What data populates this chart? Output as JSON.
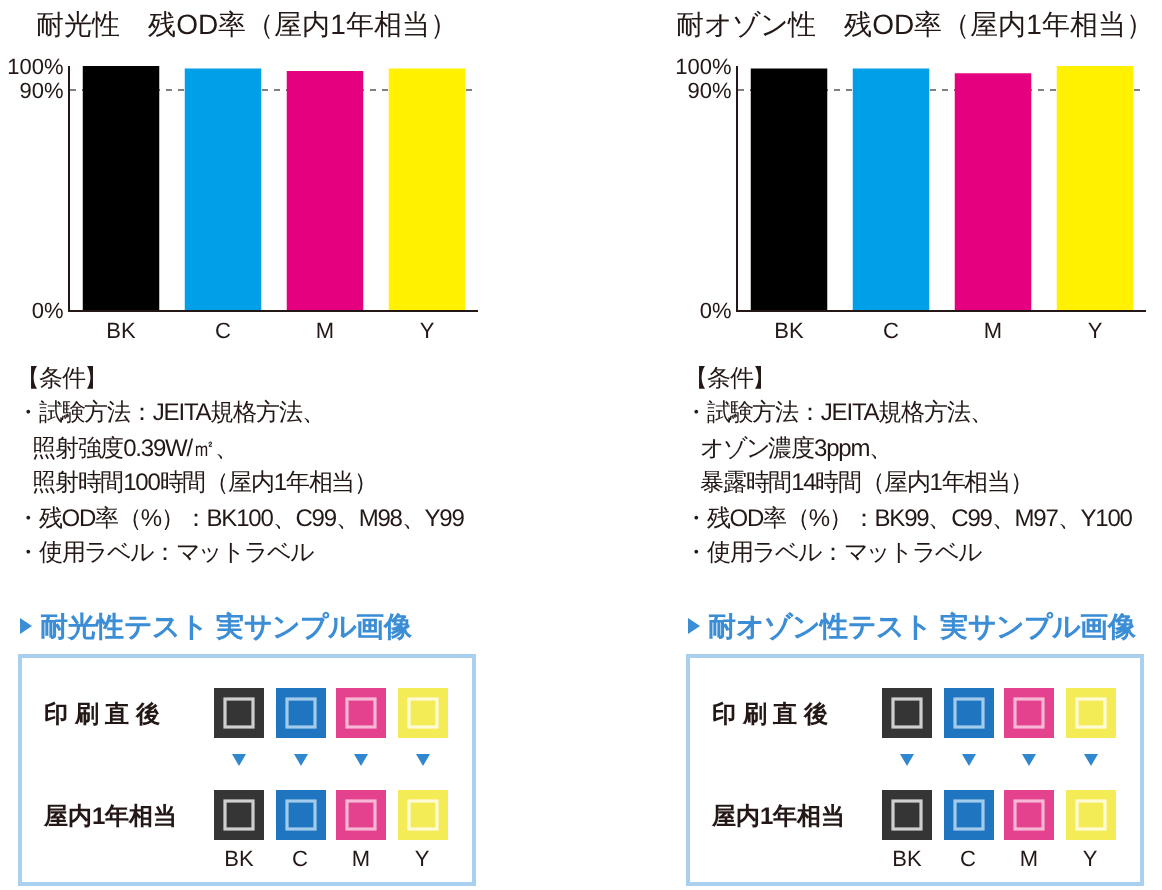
{
  "chart_data": [
    {
      "type": "bar",
      "title": "耐光性　残OD率（屋内1年相当）",
      "categories": [
        "BK",
        "C",
        "M",
        "Y"
      ],
      "values": [
        100,
        99,
        98,
        99
      ],
      "colors": [
        "#000000",
        "#00a0e9",
        "#e4007f",
        "#fff100"
      ],
      "ylim": [
        0,
        100
      ],
      "yticks": [
        {
          "value": 0,
          "label": "0%"
        },
        {
          "value": 90,
          "label": "90%"
        },
        {
          "value": 100,
          "label": "100%"
        }
      ],
      "grid": "y",
      "annotations": [
        "【条件】",
        "・試験方法：JEITA規格方法、照射強度0.39W/㎡、照射時間100時間（屋内1年相当）",
        "・残OD率（%）：BK100、C99、M98、Y99",
        "・使用ラベル：マットラベル",
        "耐光性テスト 実サンプル画像",
        "印 刷 直 後",
        "屋内1年相当"
      ]
    },
    {
      "type": "bar",
      "title": "耐オゾン性　残OD率（屋内1年相当）",
      "categories": [
        "BK",
        "C",
        "M",
        "Y"
      ],
      "values": [
        99,
        99,
        97,
        100
      ],
      "colors": [
        "#000000",
        "#00a0e9",
        "#e4007f",
        "#fff100"
      ],
      "ylim": [
        0,
        100
      ],
      "yticks": [
        {
          "value": 0,
          "label": "0%"
        },
        {
          "value": 90,
          "label": "90%"
        },
        {
          "value": 100,
          "label": "100%"
        }
      ],
      "grid": "y",
      "annotations": [
        "【条件】",
        "・試験方法：JEITA規格方法、オゾン濃度3ppm、暴露時間14時間（屋内1年相当）",
        "・残OD率（%）：BK99、C99、M97、Y100",
        "・使用ラベル：マットラベル",
        "耐オゾン性テスト 実サンプル画像",
        "印 刷 直 後",
        "屋内1年相当"
      ]
    }
  ]
}
